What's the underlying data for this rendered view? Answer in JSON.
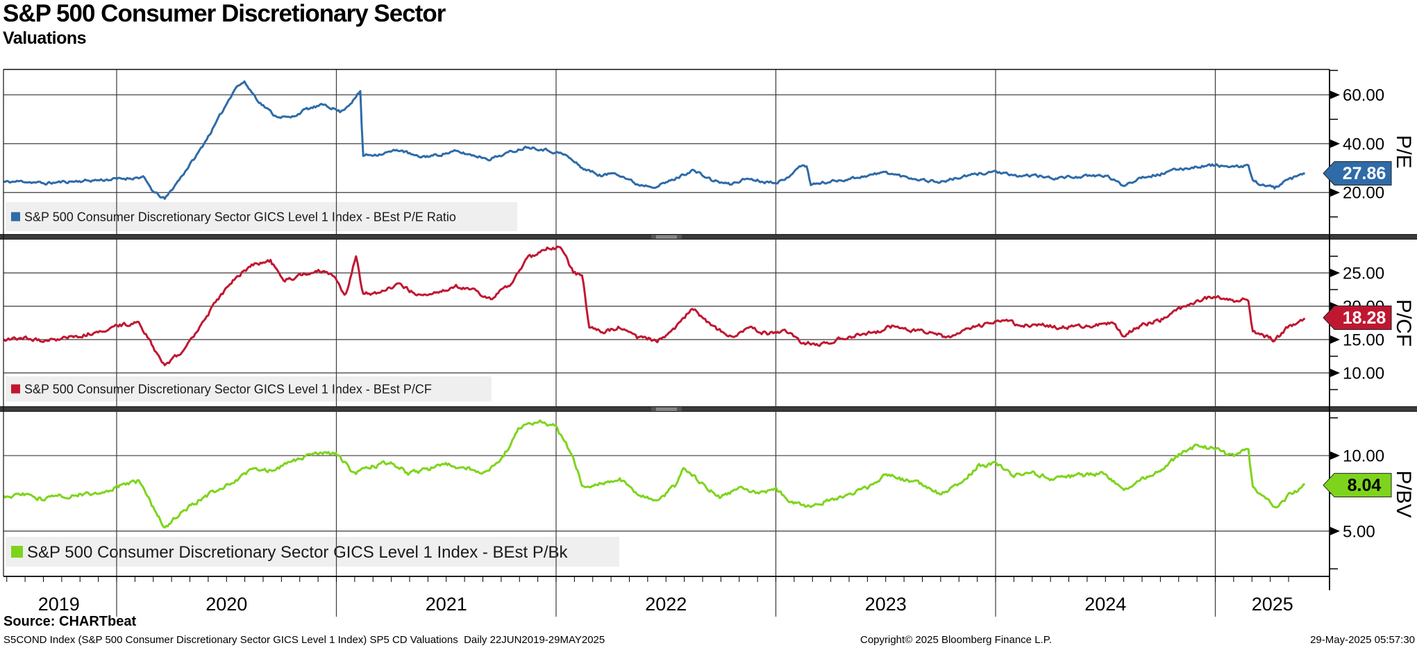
{
  "header": {
    "title": "S&P 500 Consumer Discretionary Sector",
    "subtitle": "Valuations"
  },
  "footer": {
    "source": "Source: CHARTbeat",
    "description": "S5COND Index (S&P 500 Consumer Discretionary Sector GICS Level 1 Index) SP5 CD Valuations  Daily 22JUN2019-29MAY2025",
    "copyright": "Copyright© 2025 Bloomberg Finance L.P.",
    "timestamp": "29-May-2025 05:57:30"
  },
  "colors": {
    "pe_blue": "#2e6ba8",
    "pcf_red": "#c01731",
    "pbv_green": "#7ed41c",
    "grid": "#3a3a3a",
    "separator": "#3a3a3a",
    "legend_bg": "#efefef",
    "axis": "#000000"
  },
  "x_axis": {
    "years": [
      "2019",
      "2020",
      "2021",
      "2022",
      "2023",
      "2024",
      "2025"
    ],
    "xlim_years": [
      2019.474,
      2025.408
    ],
    "range_label": "22JUN2019-29MAY2025"
  },
  "chart_data": [
    {
      "id": "pe",
      "type": "line",
      "axis_title": "P/E",
      "legend": "S&P 500 Consumer Discretionary Sector GICS Level 1 Index - BEst P/E Ratio",
      "color": "#2e6ba8",
      "badge_text_color": "#ffffff",
      "last_value": 27.86,
      "last_value_label": "27.86",
      "ylim": [
        3,
        70.4
      ],
      "yticks": [
        20,
        40,
        60
      ],
      "ytick_labels": [
        "20.00",
        "40.00",
        "60.00"
      ],
      "minor_yticks": [
        10,
        30,
        50,
        70
      ],
      "points": [
        [
          2019.47,
          24.2
        ],
        [
          2019.58,
          24.6
        ],
        [
          2019.67,
          23.7
        ],
        [
          2019.75,
          24.3
        ],
        [
          2019.83,
          24.7
        ],
        [
          2019.92,
          25.1
        ],
        [
          2020.0,
          25.5
        ],
        [
          2020.12,
          26.3
        ],
        [
          2020.17,
          20.0
        ],
        [
          2020.22,
          17.3
        ],
        [
          2020.29,
          26.0
        ],
        [
          2020.37,
          36.0
        ],
        [
          2020.45,
          48.0
        ],
        [
          2020.54,
          63.0
        ],
        [
          2020.58,
          65.3
        ],
        [
          2020.65,
          57.0
        ],
        [
          2020.72,
          51.5
        ],
        [
          2020.79,
          50.5
        ],
        [
          2020.86,
          54.0
        ],
        [
          2020.95,
          56.0
        ],
        [
          2021.02,
          53.0
        ],
        [
          2021.08,
          58.0
        ],
        [
          2021.11,
          61.5
        ],
        [
          2021.12,
          35.2
        ],
        [
          2021.2,
          35.8
        ],
        [
          2021.29,
          37.5
        ],
        [
          2021.37,
          34.5
        ],
        [
          2021.45,
          35.2
        ],
        [
          2021.54,
          36.8
        ],
        [
          2021.62,
          35.3
        ],
        [
          2021.7,
          33.8
        ],
        [
          2021.79,
          36.5
        ],
        [
          2021.87,
          38.8
        ],
        [
          2021.95,
          37.6
        ],
        [
          2022.04,
          35.5
        ],
        [
          2022.12,
          30.0
        ],
        [
          2022.21,
          26.8
        ],
        [
          2022.27,
          28.3
        ],
        [
          2022.37,
          23.3
        ],
        [
          2022.46,
          22.6
        ],
        [
          2022.54,
          25.5
        ],
        [
          2022.62,
          29.2
        ],
        [
          2022.71,
          25.0
        ],
        [
          2022.79,
          23.3
        ],
        [
          2022.87,
          25.8
        ],
        [
          2022.96,
          24.3
        ],
        [
          2023.04,
          24.8
        ],
        [
          2023.1,
          30.6
        ],
        [
          2023.14,
          30.8
        ],
        [
          2023.16,
          23.2
        ],
        [
          2023.25,
          24.5
        ],
        [
          2023.33,
          25.6
        ],
        [
          2023.42,
          27.0
        ],
        [
          2023.5,
          28.3
        ],
        [
          2023.58,
          26.5
        ],
        [
          2023.67,
          25.2
        ],
        [
          2023.75,
          24.3
        ],
        [
          2023.83,
          26.0
        ],
        [
          2023.92,
          27.6
        ],
        [
          2024.0,
          28.7
        ],
        [
          2024.08,
          26.6
        ],
        [
          2024.17,
          27.1
        ],
        [
          2024.25,
          25.9
        ],
        [
          2024.33,
          26.3
        ],
        [
          2024.42,
          26.6
        ],
        [
          2024.5,
          27.0
        ],
        [
          2024.58,
          22.9
        ],
        [
          2024.67,
          26.5
        ],
        [
          2024.75,
          27.5
        ],
        [
          2024.83,
          29.5
        ],
        [
          2024.92,
          30.6
        ],
        [
          2025.0,
          31.3
        ],
        [
          2025.08,
          30.2
        ],
        [
          2025.15,
          31.2
        ],
        [
          2025.17,
          24.5
        ],
        [
          2025.27,
          21.9
        ],
        [
          2025.33,
          25.0
        ],
        [
          2025.41,
          27.86
        ]
      ]
    },
    {
      "id": "pcf",
      "type": "line",
      "axis_title": "P/CF",
      "legend": "S&P 500 Consumer Discretionary Sector GICS Level 1 Index - BEst P/CF",
      "color": "#c01731",
      "badge_text_color": "#ffffff",
      "last_value": 18.28,
      "last_value_label": "18.28",
      "ylim": [
        5,
        30
      ],
      "yticks": [
        10,
        15,
        20,
        25
      ],
      "ytick_labels": [
        "10.00",
        "15.00",
        "20.00",
        "25.00"
      ],
      "minor_yticks": [
        7.5,
        12.5,
        17.5,
        22.5,
        27.5
      ],
      "points": [
        [
          2019.47,
          15.0
        ],
        [
          2019.58,
          15.3
        ],
        [
          2019.67,
          14.8
        ],
        [
          2019.75,
          15.2
        ],
        [
          2019.83,
          15.6
        ],
        [
          2019.92,
          16.2
        ],
        [
          2020.0,
          17.0
        ],
        [
          2020.1,
          17.6
        ],
        [
          2020.22,
          10.9
        ],
        [
          2020.29,
          13.0
        ],
        [
          2020.37,
          16.5
        ],
        [
          2020.45,
          20.5
        ],
        [
          2020.54,
          24.2
        ],
        [
          2020.62,
          26.3
        ],
        [
          2020.7,
          26.8
        ],
        [
          2020.76,
          23.8
        ],
        [
          2020.83,
          24.6
        ],
        [
          2020.92,
          25.4
        ],
        [
          2021.0,
          24.2
        ],
        [
          2021.04,
          21.2
        ],
        [
          2021.09,
          27.6
        ],
        [
          2021.12,
          21.8
        ],
        [
          2021.2,
          22.1
        ],
        [
          2021.29,
          23.4
        ],
        [
          2021.37,
          21.6
        ],
        [
          2021.45,
          22.1
        ],
        [
          2021.54,
          23.1
        ],
        [
          2021.62,
          22.4
        ],
        [
          2021.7,
          21.1
        ],
        [
          2021.79,
          23.2
        ],
        [
          2021.87,
          27.2
        ],
        [
          2021.96,
          28.6
        ],
        [
          2022.02,
          28.8
        ],
        [
          2022.08,
          25.0
        ],
        [
          2022.12,
          24.6
        ],
        [
          2022.15,
          16.8
        ],
        [
          2022.21,
          16.1
        ],
        [
          2022.29,
          16.9
        ],
        [
          2022.37,
          15.3
        ],
        [
          2022.46,
          14.9
        ],
        [
          2022.54,
          16.6
        ],
        [
          2022.62,
          19.8
        ],
        [
          2022.71,
          17.0
        ],
        [
          2022.79,
          15.4
        ],
        [
          2022.87,
          16.8
        ],
        [
          2022.96,
          15.9
        ],
        [
          2023.04,
          16.2
        ],
        [
          2023.12,
          14.6
        ],
        [
          2023.21,
          14.2
        ],
        [
          2023.29,
          15.1
        ],
        [
          2023.37,
          15.6
        ],
        [
          2023.46,
          16.2
        ],
        [
          2023.54,
          17.1
        ],
        [
          2023.62,
          16.4
        ],
        [
          2023.71,
          15.9
        ],
        [
          2023.79,
          15.3
        ],
        [
          2023.87,
          16.4
        ],
        [
          2023.96,
          17.4
        ],
        [
          2024.04,
          17.9
        ],
        [
          2024.12,
          17.1
        ],
        [
          2024.21,
          17.4
        ],
        [
          2024.29,
          16.7
        ],
        [
          2024.37,
          17.0
        ],
        [
          2024.46,
          17.2
        ],
        [
          2024.54,
          17.5
        ],
        [
          2024.58,
          15.7
        ],
        [
          2024.67,
          17.2
        ],
        [
          2024.75,
          17.9
        ],
        [
          2024.83,
          19.6
        ],
        [
          2024.92,
          20.9
        ],
        [
          2025.0,
          21.6
        ],
        [
          2025.08,
          20.8
        ],
        [
          2025.15,
          21.3
        ],
        [
          2025.17,
          16.3
        ],
        [
          2025.27,
          14.9
        ],
        [
          2025.33,
          16.8
        ],
        [
          2025.41,
          18.28
        ]
      ]
    },
    {
      "id": "pbv",
      "type": "line",
      "axis_title": "P/BV",
      "legend": "S&P 500 Consumer Discretionary Sector GICS Level 1 Index - BEst P/Bk",
      "color": "#7ed41c",
      "badge_text_color": "#000000",
      "last_value": 8.04,
      "last_value_label": "8.04",
      "ylim": [
        2,
        12.9
      ],
      "yticks": [
        5,
        10
      ],
      "ytick_labels": [
        "5.00",
        "10.00"
      ],
      "minor_yticks": [
        2.5,
        7.5,
        12.5
      ],
      "points": [
        [
          2019.47,
          7.25
        ],
        [
          2019.58,
          7.4
        ],
        [
          2019.67,
          7.1
        ],
        [
          2019.75,
          7.3
        ],
        [
          2019.83,
          7.4
        ],
        [
          2019.92,
          7.55
        ],
        [
          2020.0,
          7.9
        ],
        [
          2020.1,
          8.3
        ],
        [
          2020.22,
          5.2
        ],
        [
          2020.29,
          6.2
        ],
        [
          2020.37,
          7.0
        ],
        [
          2020.45,
          7.7
        ],
        [
          2020.54,
          8.3
        ],
        [
          2020.62,
          9.2
        ],
        [
          2020.7,
          9.0
        ],
        [
          2020.76,
          9.3
        ],
        [
          2020.83,
          9.8
        ],
        [
          2020.92,
          10.1
        ],
        [
          2021.0,
          10.2
        ],
        [
          2021.08,
          8.8
        ],
        [
          2021.17,
          9.3
        ],
        [
          2021.25,
          9.6
        ],
        [
          2021.33,
          8.8
        ],
        [
          2021.42,
          9.1
        ],
        [
          2021.5,
          9.4
        ],
        [
          2021.58,
          9.2
        ],
        [
          2021.67,
          8.9
        ],
        [
          2021.75,
          9.7
        ],
        [
          2021.83,
          11.8
        ],
        [
          2021.92,
          12.3
        ],
        [
          2022.0,
          11.9
        ],
        [
          2022.08,
          9.8
        ],
        [
          2022.12,
          8.0
        ],
        [
          2022.21,
          8.2
        ],
        [
          2022.29,
          8.5
        ],
        [
          2022.37,
          7.5
        ],
        [
          2022.46,
          6.9
        ],
        [
          2022.54,
          8.0
        ],
        [
          2022.58,
          9.3
        ],
        [
          2022.67,
          8.0
        ],
        [
          2022.75,
          7.2
        ],
        [
          2022.83,
          7.9
        ],
        [
          2022.92,
          7.5
        ],
        [
          2023.0,
          7.8
        ],
        [
          2023.08,
          6.8
        ],
        [
          2023.17,
          6.6
        ],
        [
          2023.25,
          7.1
        ],
        [
          2023.33,
          7.4
        ],
        [
          2023.42,
          7.9
        ],
        [
          2023.5,
          8.8
        ],
        [
          2023.58,
          8.4
        ],
        [
          2023.67,
          8.1
        ],
        [
          2023.75,
          7.4
        ],
        [
          2023.83,
          8.1
        ],
        [
          2023.92,
          9.3
        ],
        [
          2024.0,
          9.5
        ],
        [
          2024.08,
          8.7
        ],
        [
          2024.17,
          8.8
        ],
        [
          2024.25,
          8.5
        ],
        [
          2024.33,
          8.6
        ],
        [
          2024.42,
          8.7
        ],
        [
          2024.5,
          8.8
        ],
        [
          2024.58,
          7.6
        ],
        [
          2024.67,
          8.5
        ],
        [
          2024.75,
          8.9
        ],
        [
          2024.83,
          10.0
        ],
        [
          2024.92,
          10.7
        ],
        [
          2025.0,
          10.4
        ],
        [
          2025.08,
          10.0
        ],
        [
          2025.15,
          10.4
        ],
        [
          2025.17,
          8.0
        ],
        [
          2025.27,
          6.5
        ],
        [
          2025.33,
          7.3
        ],
        [
          2025.41,
          8.04
        ]
      ]
    }
  ]
}
